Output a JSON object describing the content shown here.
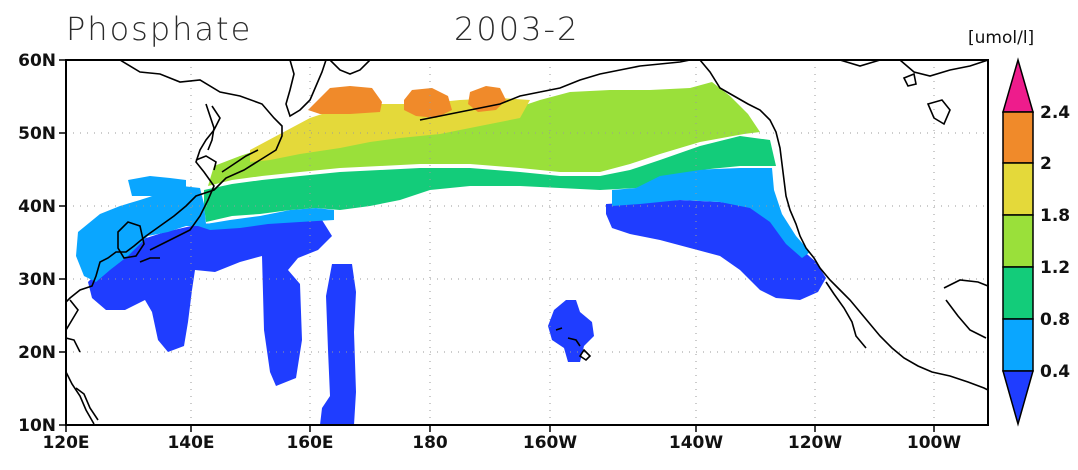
{
  "title": {
    "variable": "Phosphate",
    "date": "2003-2"
  },
  "units": "[umol/l]",
  "map": {
    "projection": "lat-lon",
    "lon_range": [
      "120E",
      "90W"
    ],
    "lat_range": [
      "10N",
      "60N"
    ],
    "grid": "dotted",
    "x_ticks": [
      "120E",
      "140E",
      "160E",
      "180",
      "160W",
      "140W",
      "120W",
      "100W"
    ],
    "y_ticks": [
      "10N",
      "20N",
      "30N",
      "40N",
      "50N",
      "60N"
    ]
  },
  "colorbar": {
    "levels": [
      "0.4",
      "0.8",
      "1.2",
      "1.8",
      "2",
      "2.4"
    ],
    "colors": [
      "#1f3dff",
      "#0aa6ff",
      "#13cc7a",
      "#9ae03a",
      "#e4d93a",
      "#f08a2a",
      "#ee1c8c"
    ],
    "extend": "both"
  }
}
